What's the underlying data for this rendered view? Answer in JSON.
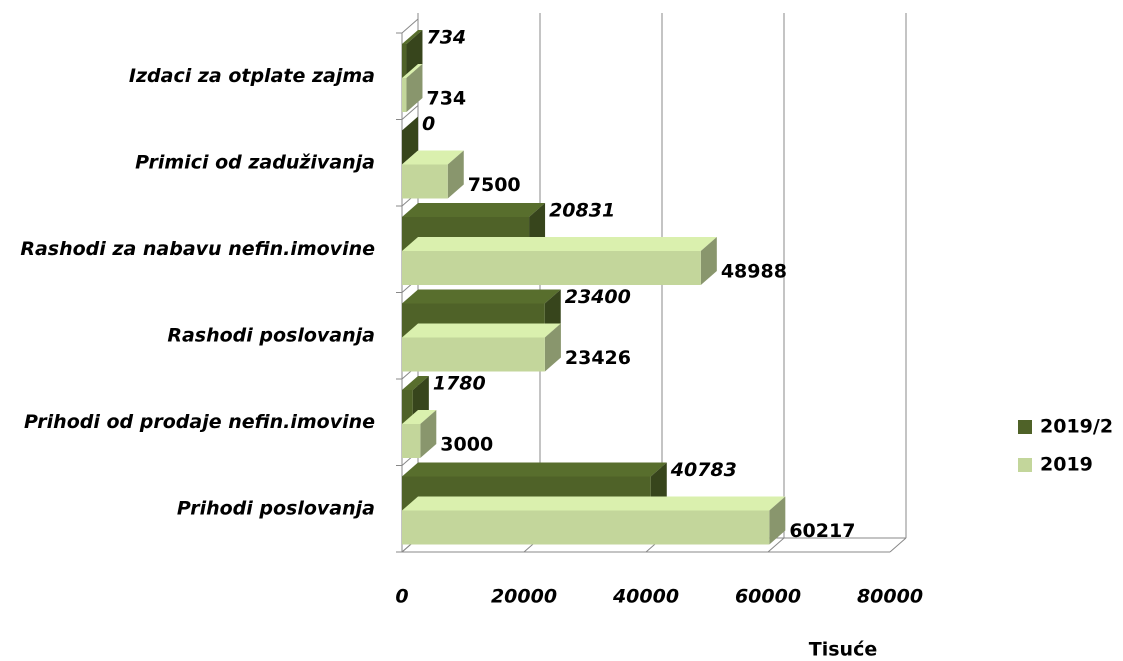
{
  "chart_data": {
    "type": "bar3d_horizontal",
    "categories": [
      "Prihodi poslovanja",
      "Prihodi od prodaje nefin.imovine",
      "Rashodi poslovanja",
      "Rashodi za nabavu nefin.imovine",
      "Primici od zaduživanja",
      "Izdaci za otplate zajma"
    ],
    "series": [
      {
        "name": "2019/2",
        "color": "#4f6228",
        "values": [
          40783,
          1780,
          23400,
          20831,
          0,
          734
        ]
      },
      {
        "name": "2019",
        "color": "#c3d69b",
        "values": [
          60217,
          3000,
          23426,
          48988,
          7500,
          734
        ]
      }
    ],
    "xlim": [
      0,
      80000
    ],
    "xticks": [
      0,
      20000,
      40000,
      60000,
      80000
    ],
    "x_label": "Tisuće",
    "grid": true,
    "legend": "right"
  }
}
